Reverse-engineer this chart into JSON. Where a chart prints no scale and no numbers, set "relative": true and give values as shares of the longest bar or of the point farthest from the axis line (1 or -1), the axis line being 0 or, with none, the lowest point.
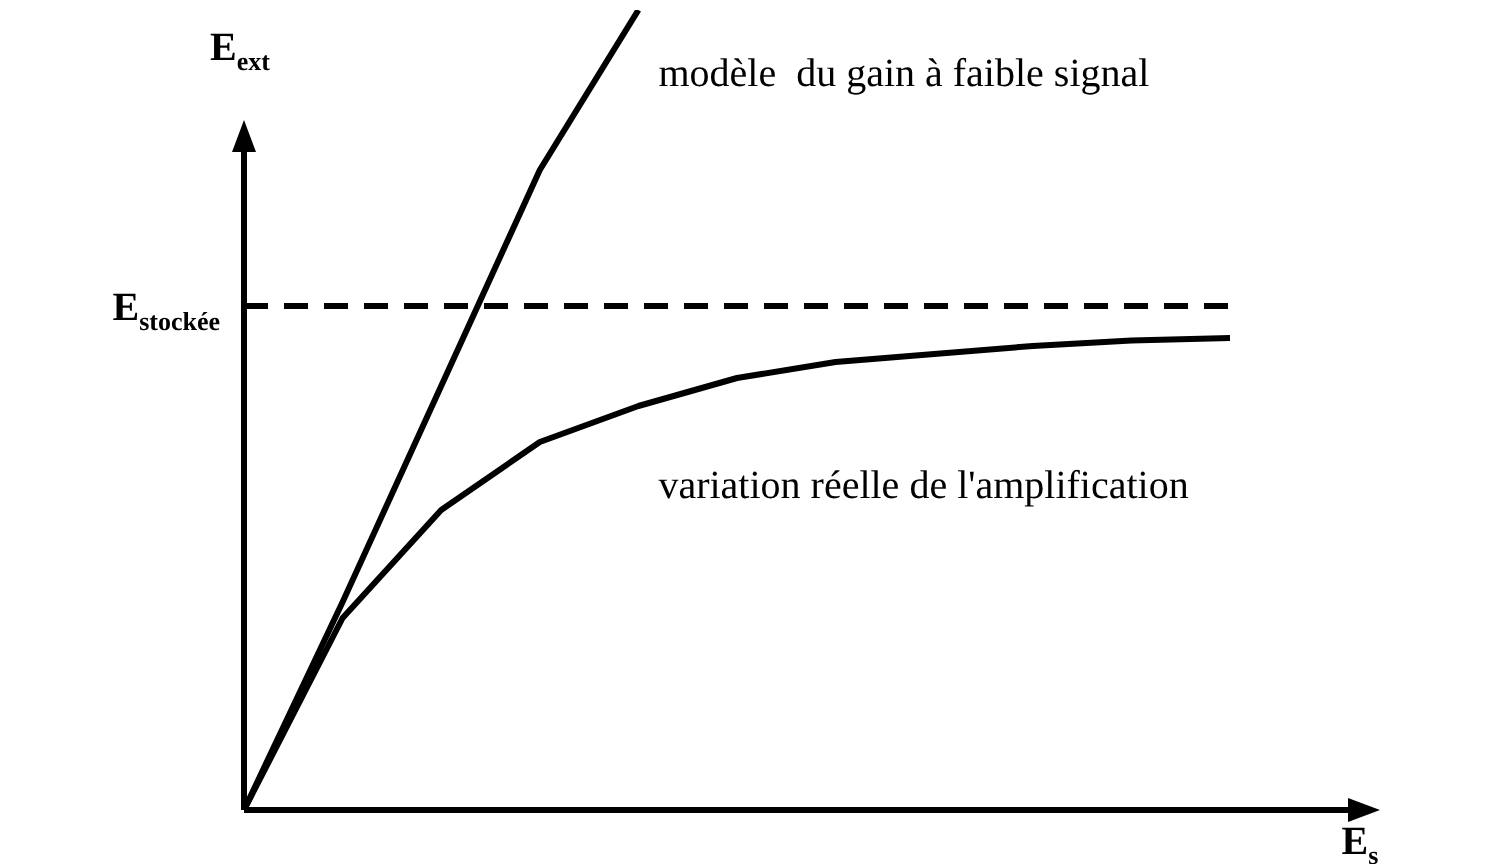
{
  "chart_data": {
    "type": "line",
    "relative": true,
    "xlabel": "E$_{s}$",
    "ylabel": "E$_{ext}$",
    "categories": [
      null,
      null,
      null,
      null,
      null,
      null,
      null,
      null,
      null,
      null,
      null
    ],
    "series": [
      {
        "name": "modèle  du gain à faible signal",
        "color": "#000000",
        "values": [
          0,
          0.26,
          0.53,
          0.8,
          1,
          null,
          null,
          null,
          null,
          null,
          null
        ]
      },
      {
        "name": "variation réelle de l'amplification",
        "color": "#000000",
        "values": [
          0,
          0.24,
          0.375,
          0.46,
          0.505,
          0.54,
          0.56,
          0.57,
          0.58,
          0.587,
          0.59
        ]
      }
    ],
    "ref_lines": [
      {
        "axis": "y",
        "value": 0.63,
        "label": "E$_{stockée}$",
        "color": "#000000",
        "line_style": "dashed"
      }
    ],
    "grid": false,
    "legend": false,
    "tick_labels": false,
    "marker": "none",
    "line_style": "solid"
  }
}
